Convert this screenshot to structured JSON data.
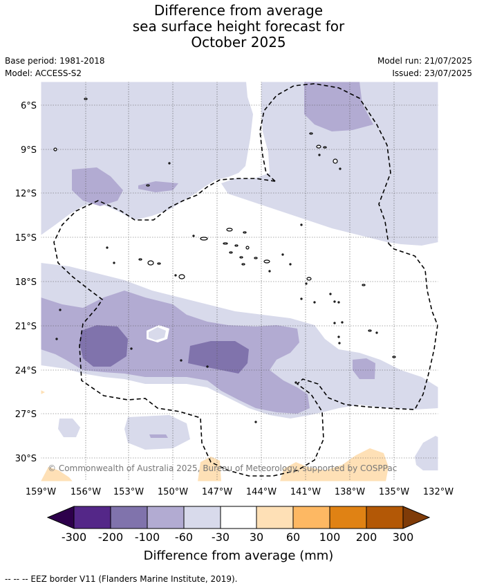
{
  "title": {
    "line1": "Difference from average",
    "line2": "sea surface height forecast for",
    "line3": "October 2025"
  },
  "meta": {
    "base_period": "Base period: 1981-2018",
    "model": "Model: ACCESS-S2",
    "model_run": "Model run: 21/07/2025",
    "issued": "Issued: 23/07/2025"
  },
  "map": {
    "lat_labels": [
      "6°S",
      "9°S",
      "12°S",
      "15°S",
      "18°S",
      "21°S",
      "24°S",
      "27°S",
      "30°S"
    ],
    "lon_labels": [
      "159°W",
      "156°W",
      "153°W",
      "150°W",
      "147°W",
      "144°W",
      "141°W",
      "138°W",
      "135°W",
      "132°W"
    ],
    "credit": "© Commonwealth of Australia 2025, Bureau of Meteorology, supported by COSPPac"
  },
  "colorbar": {
    "ticks": [
      "-300",
      "-200",
      "-100",
      "-60",
      "-30",
      "30",
      "60",
      "100",
      "200",
      "300"
    ],
    "colors": {
      "below": "#2d004b",
      "c1": "#542788",
      "c2": "#8073ac",
      "c3": "#b2abd2",
      "c4": "#d8daeb",
      "c5": "#ffffff",
      "c6": "#fee0b6",
      "c7": "#fdb863",
      "c8": "#e08214",
      "c9": "#b35806",
      "above": "#7f3b08"
    },
    "label": "Difference from average (mm)"
  },
  "footnote": "--  --  -- EEZ border V11 (Flanders Marine Institute, 2019)."
}
